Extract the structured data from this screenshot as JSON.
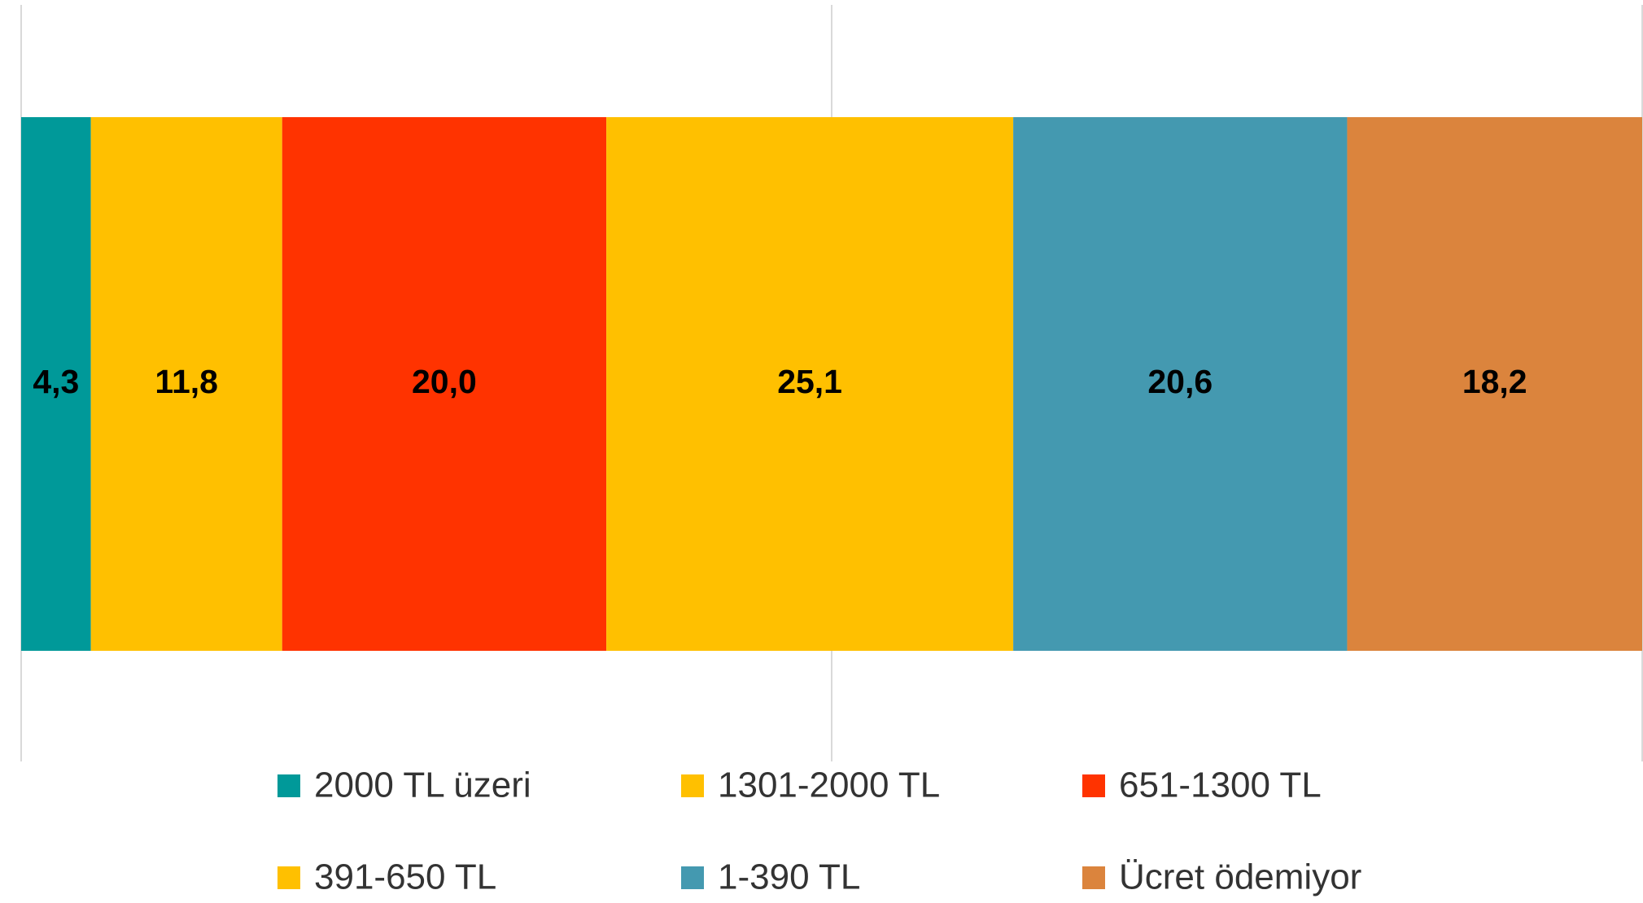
{
  "chart_data": {
    "type": "stacked_bar_horizontal",
    "categories": [
      null
    ],
    "series": [
      {
        "name": "2000 TL üzeri",
        "color": "#009999",
        "values": [
          4.3
        ],
        "value_labels": [
          "4,3"
        ]
      },
      {
        "name": "1301-2000 TL",
        "color": "#ffc000",
        "values": [
          11.8
        ],
        "value_labels": [
          "11,8"
        ]
      },
      {
        "name": "651-1300 TL",
        "color": "#ff3300",
        "values": [
          20.0
        ],
        "value_labels": [
          "20,0"
        ]
      },
      {
        "name": "391-650 TL",
        "color": "#ffc000",
        "values": [
          25.1
        ],
        "value_labels": [
          "25,1"
        ]
      },
      {
        "name": "1-390 TL",
        "color": "#4499b0",
        "values": [
          20.6
        ],
        "value_labels": [
          "20,6"
        ]
      },
      {
        "name": "Ücret ödemiyor",
        "color": "#db843d",
        "values": [
          18.2
        ],
        "value_labels": [
          "18,2"
        ]
      }
    ],
    "xlim": [
      0,
      100
    ],
    "xticks": [
      0,
      50,
      100
    ],
    "grid": true,
    "legend": "bottom"
  }
}
